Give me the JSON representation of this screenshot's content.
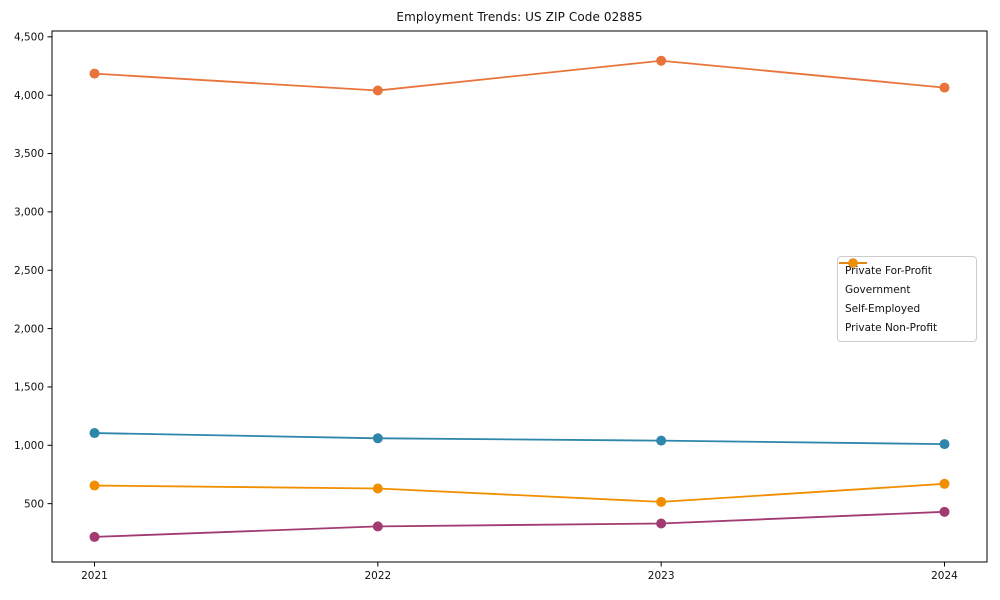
{
  "chart_data": {
    "type": "line",
    "title": "Employment Trends: US ZIP Code 02885",
    "x": [
      2021,
      2022,
      2023,
      2024
    ],
    "x_labels": [
      "2021",
      "2022",
      "2023",
      "2024"
    ],
    "series": [
      {
        "name": "Private For-Profit",
        "color": "#E8743B",
        "values": [
          4185,
          4040,
          4295,
          4065
        ]
      },
      {
        "name": "Government",
        "color": "#2E86AB",
        "values": [
          1105,
          1060,
          1040,
          1010
        ]
      },
      {
        "name": "Self-Employed",
        "color": "#A23B72",
        "values": [
          215,
          305,
          330,
          430
        ]
      },
      {
        "name": "Private Non-Profit",
        "color": "#F18F01",
        "values": [
          655,
          630,
          515,
          670
        ]
      }
    ],
    "xlabel": "",
    "ylabel": "",
    "xlim": [
      2020.85,
      2024.15
    ],
    "ylim": [
      0,
      4550
    ],
    "yticks": [
      500,
      1000,
      1500,
      2000,
      2500,
      3000,
      3500,
      4000,
      4500
    ],
    "ytick_labels": [
      "500",
      "1,000",
      "1,500",
      "2,000",
      "2,500",
      "3,000",
      "3,500",
      "4,000",
      "4,500"
    ],
    "grid": false,
    "marker": "circle",
    "legend": {
      "position": "center-right",
      "border_color": "#cccccc",
      "background": "#ffffff",
      "entries": [
        "Private For-Profit",
        "Government",
        "Self-Employed",
        "Private Non-Profit"
      ]
    },
    "axis_color": "#000000",
    "text_color": "#111111"
  }
}
